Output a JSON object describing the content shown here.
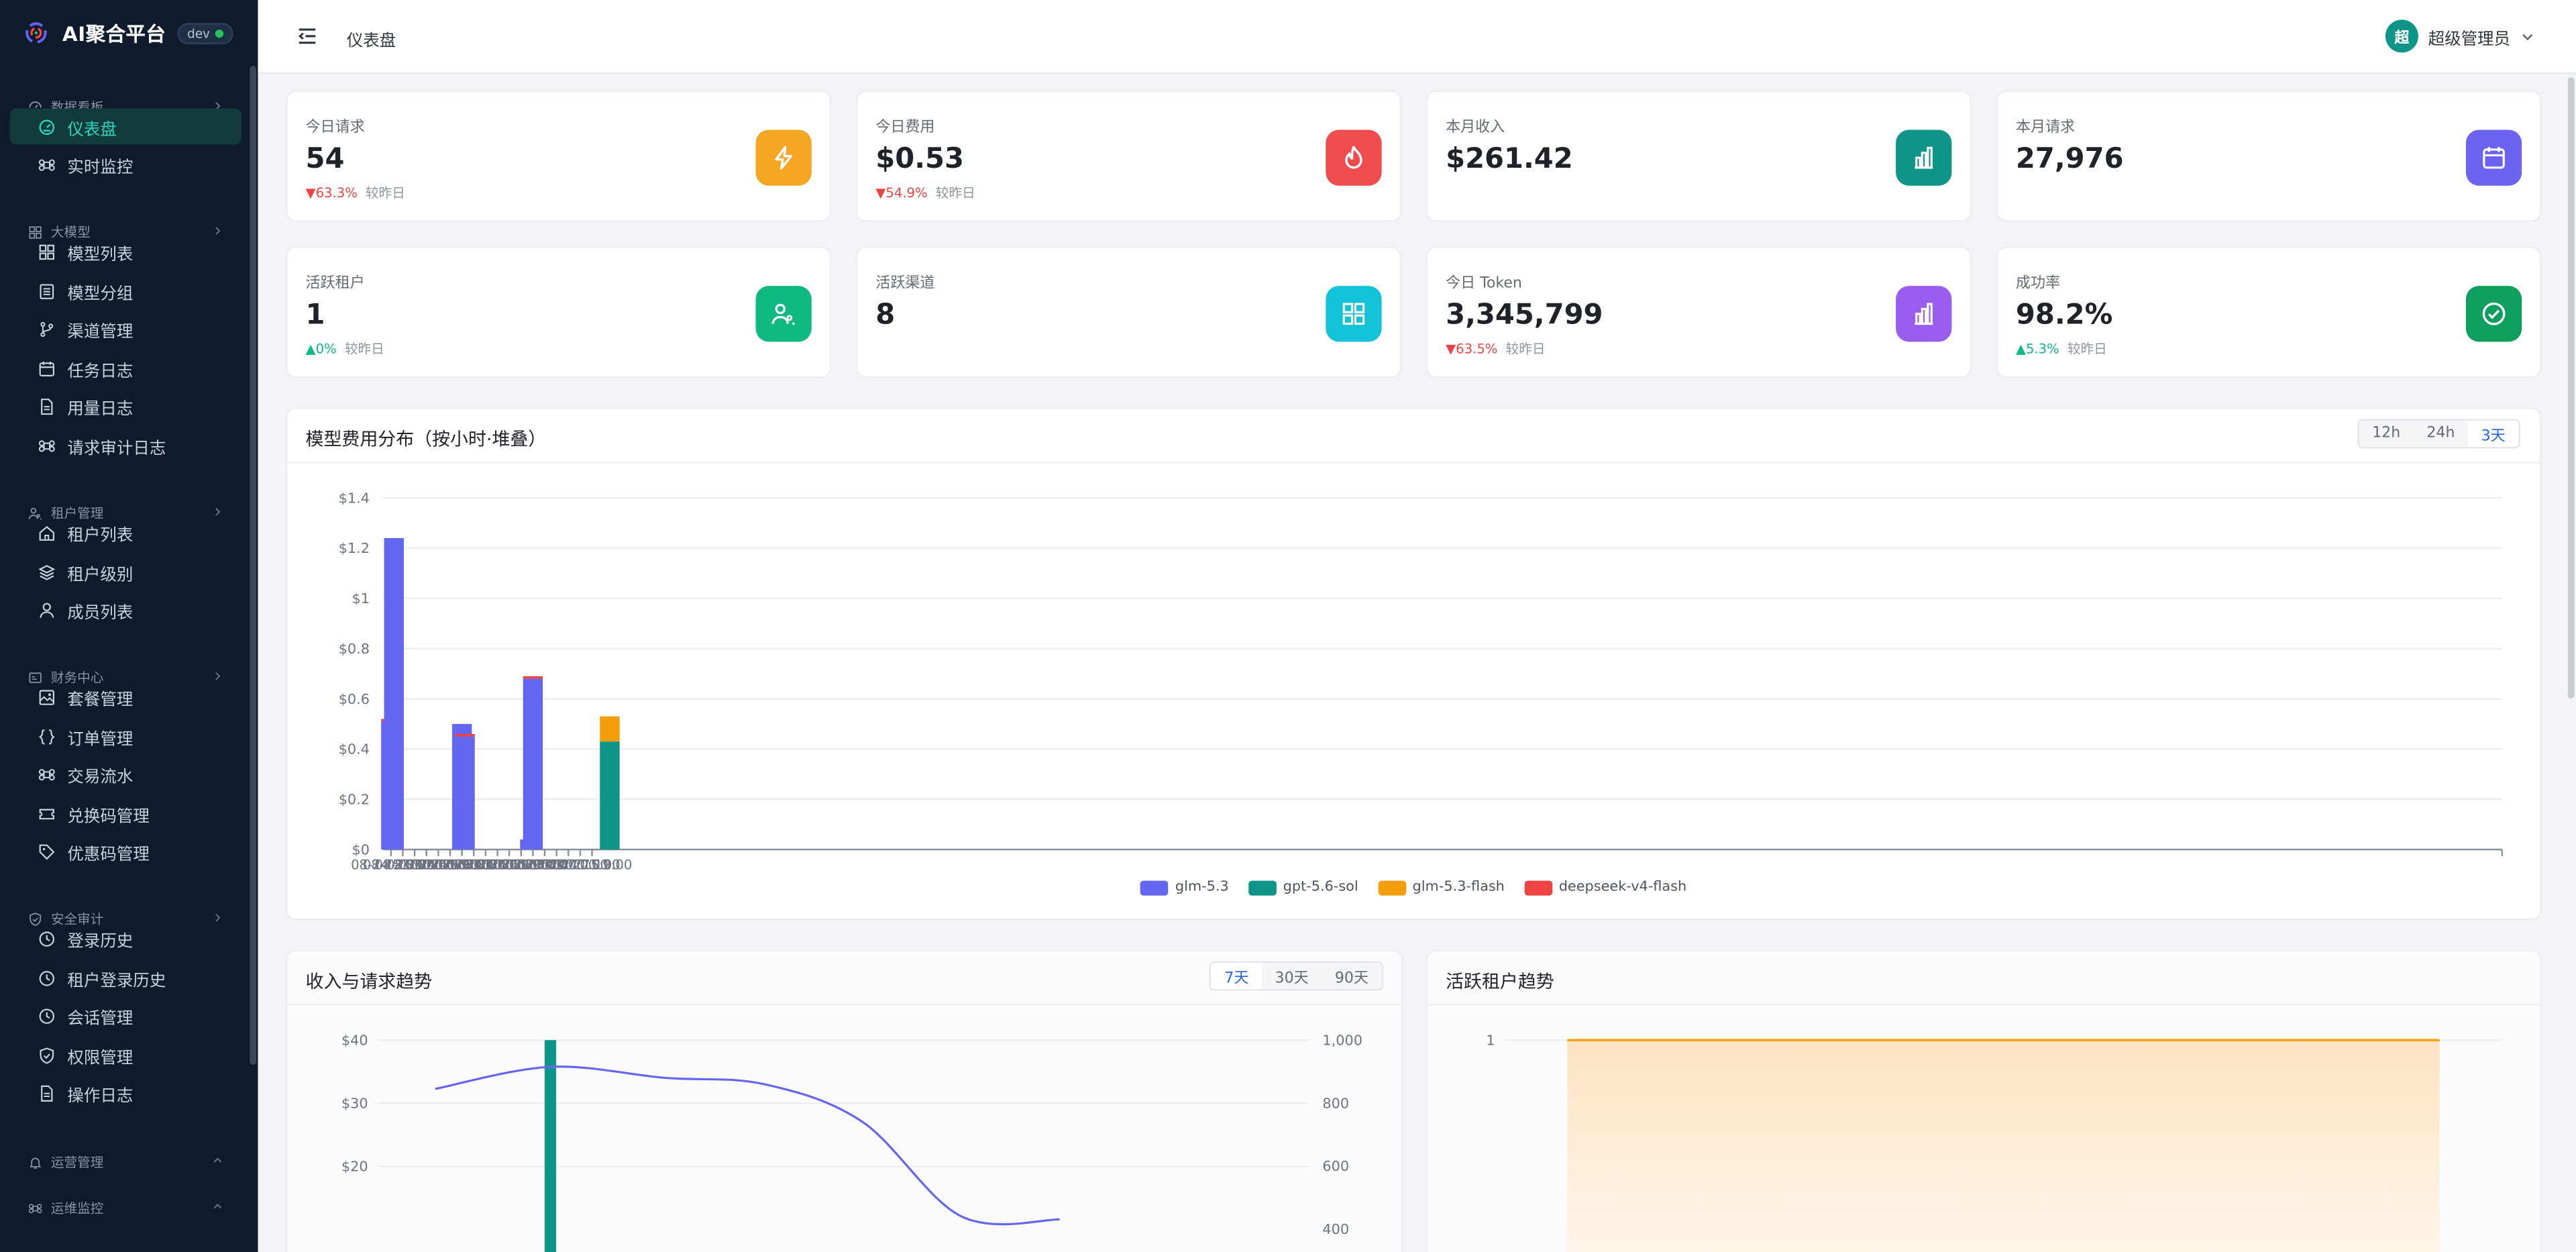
{
  "brand": {
    "title": "AI聚合平台",
    "env": "dev"
  },
  "sidebar": {
    "groups": [
      {
        "label": "数据看板",
        "icon": "dashboard-icon",
        "items": [
          {
            "label": "仪表盘",
            "icon": "gauge-icon",
            "active": true
          },
          {
            "label": "实时监控",
            "icon": "command-icon"
          }
        ]
      },
      {
        "label": "大模型",
        "icon": "grid-icon",
        "items": [
          {
            "label": "模型列表",
            "icon": "grid-icon"
          },
          {
            "label": "模型分组",
            "icon": "list-icon"
          },
          {
            "label": "渠道管理",
            "icon": "branch-icon"
          },
          {
            "label": "任务日志",
            "icon": "calendar-icon"
          },
          {
            "label": "用量日志",
            "icon": "document-icon"
          },
          {
            "label": "请求审计日志",
            "icon": "command-icon"
          }
        ]
      },
      {
        "label": "租户管理",
        "icon": "users-icon",
        "items": [
          {
            "label": "租户列表",
            "icon": "home-icon"
          },
          {
            "label": "租户级别",
            "icon": "layers-icon"
          },
          {
            "label": "成员列表",
            "icon": "user-icon"
          }
        ]
      },
      {
        "label": "财务中心",
        "icon": "wallet-icon",
        "items": [
          {
            "label": "套餐管理",
            "icon": "image-icon"
          },
          {
            "label": "订单管理",
            "icon": "braces-icon"
          },
          {
            "label": "交易流水",
            "icon": "command-icon"
          },
          {
            "label": "兑换码管理",
            "icon": "ticket-icon"
          },
          {
            "label": "优惠码管理",
            "icon": "tag-icon"
          }
        ]
      },
      {
        "label": "安全审计",
        "icon": "shield-icon",
        "items": [
          {
            "label": "登录历史",
            "icon": "clock-icon"
          },
          {
            "label": "租户登录历史",
            "icon": "clock-icon"
          },
          {
            "label": "会话管理",
            "icon": "clock-icon"
          },
          {
            "label": "权限管理",
            "icon": "shield-icon"
          },
          {
            "label": "操作日志",
            "icon": "document-icon"
          }
        ]
      },
      {
        "label": "运营管理",
        "icon": "bell-icon",
        "items": []
      },
      {
        "label": "运维监控",
        "icon": "command-icon",
        "items": []
      }
    ]
  },
  "topbar": {
    "breadcrumb": "仪表盘",
    "user": "超级管理员",
    "avatar": "超"
  },
  "stats": [
    {
      "label": "今日请求",
      "value": "54",
      "trend": "63.3%",
      "dir": "down",
      "cmp": "较昨日",
      "icon": "lightning-icon",
      "color": "#f5a623"
    },
    {
      "label": "今日费用",
      "value": "$0.53",
      "trend": "54.9%",
      "dir": "down",
      "cmp": "较昨日",
      "icon": "flame-icon",
      "color": "#ef4d4d"
    },
    {
      "label": "本月收入",
      "value": "$261.42",
      "icon": "bar-chart-icon",
      "color": "#0f9488"
    },
    {
      "label": "本月请求",
      "value": "27,976",
      "icon": "calendar-icon",
      "color": "#6c63f0"
    },
    {
      "label": "活跃租户",
      "value": "1",
      "trend": "0%",
      "dir": "up",
      "cmp": "较昨日",
      "icon": "users-icon",
      "color": "#10b981"
    },
    {
      "label": "活跃渠道",
      "value": "8",
      "icon": "grid-icon",
      "color": "#13c2d6"
    },
    {
      "label": "今日 Token",
      "value": "3,345,799",
      "trend": "63.5%",
      "dir": "down",
      "cmp": "较昨日",
      "icon": "bar-chart-icon",
      "color": "#9b5cf0"
    },
    {
      "label": "成功率",
      "value": "98.2%",
      "trend": "5.3%",
      "dir": "up",
      "cmp": "较昨日",
      "icon": "check-circle-icon",
      "color": "#0e9f5e"
    }
  ],
  "cost_panel": {
    "title": "模型费用分布（按小时·堆叠）",
    "ranges": [
      "12h",
      "24h",
      "3天"
    ],
    "selected": "3天"
  },
  "revenue_panel": {
    "title": "收入与请求趋势",
    "ranges": [
      "7天",
      "30天",
      "90天"
    ],
    "selected": "7天"
  },
  "tenant_panel": {
    "title": "活跃租户趋势"
  },
  "colors": {
    "glm53": "#6366f1",
    "gpt56": "#0f9488",
    "glmflash": "#f59e0b",
    "deepseek": "#ef4444",
    "accent": "#2563eb"
  },
  "chart_data": [
    {
      "type": "bar",
      "title": "模型费用分布（按小时·堆叠）",
      "stacked": true,
      "x_tick_labels": [
        "08-24 23:00",
        "08-25 03:00",
        "08-25 07:00",
        "08-25 11:00",
        "08-25 15:00",
        "08-25 19:00",
        "08-25 23:00",
        "08-26 03:00",
        "08-26 07:00",
        "08-26 11:00",
        "08-26 15:00",
        "08-26 19:00",
        "08-26 23:00",
        "08-27 03:00",
        "08-27 07:00",
        "08-27 11:00",
        "08-27 15:00",
        "08-27 19:00"
      ],
      "y_tick_labels": [
        "$0",
        "$0.2",
        "$0.4",
        "$0.6",
        "$0.8",
        "$1",
        "$1.2",
        "$1.4"
      ],
      "ylim": [
        0,
        1.4
      ],
      "grid": true,
      "legend": "bottom",
      "bars": [
        {
          "x": "08-24 23:00",
          "glm-5.3": 0.51,
          "deepseek-v4-flash": 0.01
        },
        {
          "x": "08-25 00:00",
          "glm-5.3": 1.24
        },
        {
          "x": "08-25 23:00",
          "glm-5.3": 0.5
        },
        {
          "x": "08-26 00:00",
          "glm-5.3": 0.45,
          "deepseek-v4-flash": 0.01
        },
        {
          "x": "08-26 22:00",
          "glm-5.3": 0.04
        },
        {
          "x": "08-26 23:00",
          "glm-5.3": 0.68,
          "deepseek-v4-flash": 0.01
        },
        {
          "x": "08-28 01:00",
          "gpt-5.6-sol": 0.43,
          "glm-5.3-flash": 0.1
        }
      ],
      "series": [
        {
          "name": "glm-5.3",
          "color": "#6366f1"
        },
        {
          "name": "gpt-5.6-sol",
          "color": "#0f9488"
        },
        {
          "name": "glm-5.3-flash",
          "color": "#f59e0b"
        },
        {
          "name": "deepseek-v4-flash",
          "color": "#ef4444"
        }
      ]
    },
    {
      "type": "line",
      "title": "收入与请求趋势",
      "y_tick_labels": [
        "$20",
        "$30",
        "$40"
      ],
      "y2_tick_labels": [
        "400",
        "600",
        "800",
        "1,000"
      ],
      "ylim": [
        15,
        40
      ],
      "y2lim": [
        300,
        1000
      ],
      "series": [
        {
          "name": "revenue",
          "kind": "bar",
          "values": [
            null,
            40,
            null,
            null,
            null,
            null,
            null
          ]
        },
        {
          "name": "requests",
          "kind": "line",
          "values": [
            845,
            915,
            880,
            860,
            740,
            440,
            430
          ]
        }
      ]
    },
    {
      "type": "area",
      "title": "活跃租户趋势",
      "y_tick_labels": [
        "1"
      ],
      "values": [
        1,
        1,
        1,
        1,
        1,
        1,
        1
      ]
    }
  ]
}
